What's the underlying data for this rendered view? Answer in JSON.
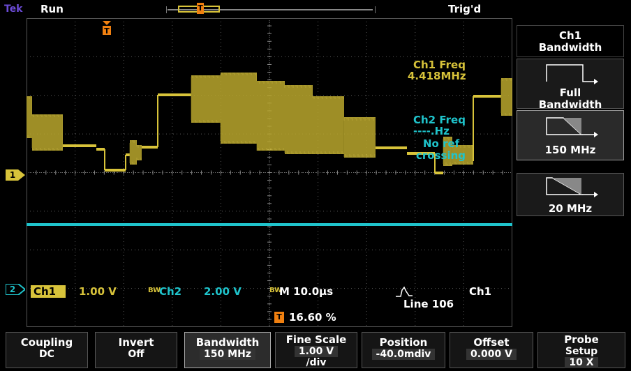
{
  "top": {
    "brand": "Tek",
    "acq_state": "Run",
    "trigger_state": "Trig'd"
  },
  "colors": {
    "ch1": "#d8c33a",
    "ch2": "#1fc4cc",
    "trigger": "#f08010",
    "graticule": "#5a5a5a"
  },
  "icons": {
    "trigger_marker": "T",
    "ch1_ground_marker": "1",
    "ch2_ground_marker": "2"
  },
  "measurements": {
    "ch1_freq_label": "Ch1 Freq",
    "ch1_freq_value": "4.418MHz",
    "ch2_freq_label": "Ch2 Freq",
    "ch2_freq_value": "----.Hz",
    "ch2_note_line1": "No ref",
    "ch2_note_line2": "crossing"
  },
  "readout": {
    "ch1_label": "Ch1",
    "ch1_scale": "1.00 V",
    "ch2_bw_marker": "BW",
    "ch2_label": "Ch2",
    "ch2_scale": "2.00 V",
    "main_bw_marker": "BW",
    "timebase": "M 10.0µs",
    "trigger_source": "Ch1",
    "trigger_type": "Line 106",
    "trigger_position": "16.60 %"
  },
  "side_menu": {
    "header_line1": "Ch1",
    "header_line2": "Bandwidth",
    "items": [
      {
        "line1": "Full",
        "line2": "Bandwidth",
        "selected": false
      },
      {
        "line1": "150 MHz",
        "line2": "",
        "selected": true
      },
      {
        "line1": "20 MHz",
        "line2": "",
        "selected": false
      }
    ]
  },
  "bottom_menu": [
    {
      "label": "Coupling",
      "value": "DC"
    },
    {
      "label": "Invert",
      "value": "Off"
    },
    {
      "label": "Bandwidth",
      "value": "150 MHz"
    },
    {
      "label": "Fine Scale",
      "value": "1.00 V",
      "value2": "/div"
    },
    {
      "label": "Position",
      "value": "-40.0mdiv"
    },
    {
      "label": "Offset",
      "value": "0.000 V"
    },
    {
      "label": "Probe",
      "value": "Setup",
      "value2": "10 X"
    }
  ]
}
